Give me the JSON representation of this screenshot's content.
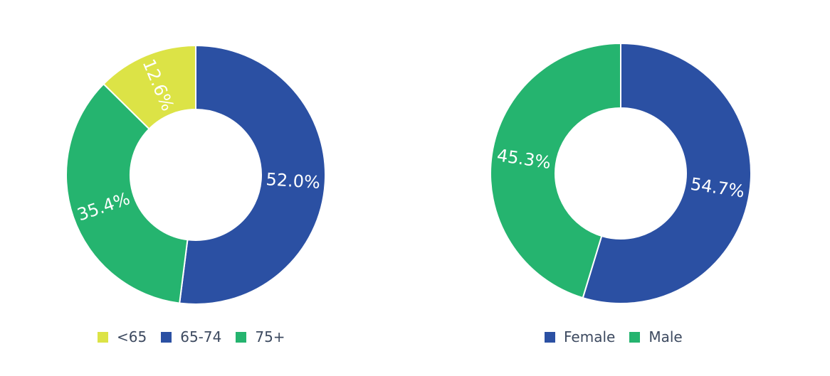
{
  "chart_data": [
    {
      "type": "pie",
      "donut": true,
      "categories": [
        "65-74",
        "75+",
        "<65"
      ],
      "values": [
        52.0,
        35.4,
        12.6
      ],
      "labels": [
        "52.0%",
        "35.4%",
        "12.6%"
      ],
      "colors": [
        "#2b50a3",
        "#25b46f",
        "#dce346"
      ],
      "legend": {
        "placement": "bottom",
        "entries": [
          "<65",
          "65-74",
          "75+"
        ],
        "colors": [
          "#dce346",
          "#2b50a3",
          "#25b46f"
        ]
      }
    },
    {
      "type": "pie",
      "donut": true,
      "categories": [
        "Female",
        "Male"
      ],
      "values": [
        54.7,
        45.3
      ],
      "labels": [
        "54.7%",
        "45.3%"
      ],
      "colors": [
        "#2b50a3",
        "#25b46f"
      ],
      "legend": {
        "placement": "bottom",
        "entries": [
          "Female",
          "Male"
        ],
        "colors": [
          "#2b50a3",
          "#25b46f"
        ]
      }
    }
  ]
}
